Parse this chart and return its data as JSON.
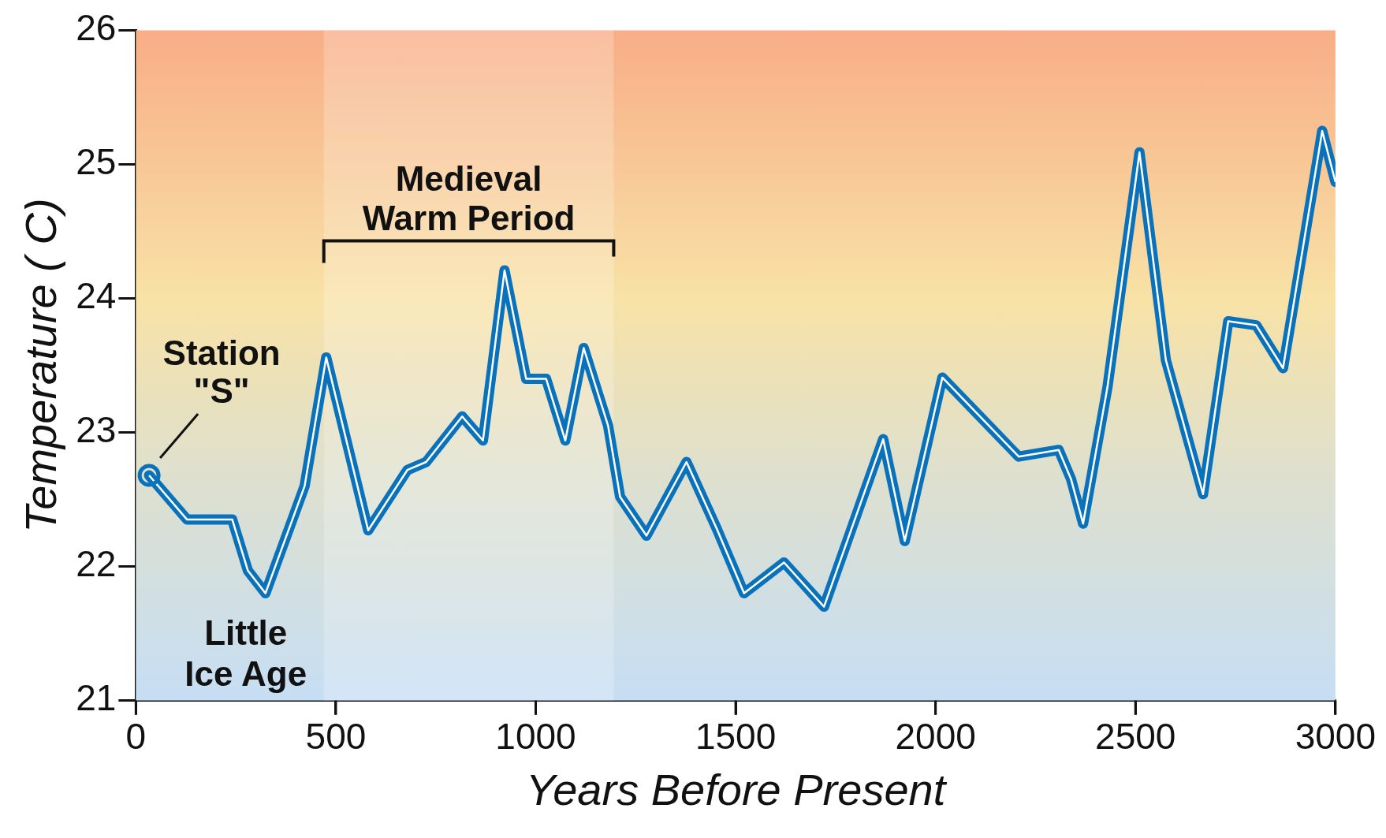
{
  "chart_data": {
    "type": "line",
    "xlabel": "Years Before Present",
    "ylabel": "Temperature ( C)",
    "x": [
      33,
      128,
      241,
      280,
      324,
      422,
      476,
      581,
      679,
      726,
      816,
      868,
      922,
      976,
      1026,
      1074,
      1120,
      1181,
      1211,
      1277,
      1377,
      1453,
      1521,
      1621,
      1721,
      1869,
      1923,
      2017,
      2208,
      2308,
      2339,
      2369,
      2430,
      2510,
      2576,
      2669,
      2732,
      2802,
      2869,
      2967,
      3000
    ],
    "series": [
      {
        "color": "#0a72bb",
        "values": [
          22.68,
          22.35,
          22.35,
          21.97,
          21.8,
          22.6,
          23.56,
          22.27,
          22.72,
          22.78,
          23.12,
          22.94,
          24.21,
          23.4,
          23.4,
          22.94,
          23.63,
          23.05,
          22.52,
          22.23,
          22.78,
          22.28,
          21.8,
          22.03,
          21.7,
          22.95,
          22.19,
          23.41,
          22.82,
          22.87,
          22.65,
          22.32,
          23.34,
          25.09,
          23.54,
          22.54,
          23.83,
          23.8,
          23.48,
          25.25,
          24.87
        ]
      }
    ],
    "xlim": [
      0,
      3000
    ],
    "xticks": [
      0,
      500,
      1000,
      1500,
      2000,
      2500,
      3000
    ],
    "ylim": [
      21,
      26
    ],
    "yticks": [
      21,
      22,
      23,
      24,
      25,
      26
    ],
    "grid": false,
    "legend": false,
    "bands": [
      {
        "axis": "x",
        "from": 470,
        "to": 1195,
        "label": "Medieval\nWarm Period"
      }
    ],
    "annotations": [
      {
        "text": "Station\n\"S\"",
        "x": 33,
        "y": 22.68
      },
      {
        "text": "Little\nIce Age",
        "x": 324,
        "y": 21.8
      }
    ]
  }
}
